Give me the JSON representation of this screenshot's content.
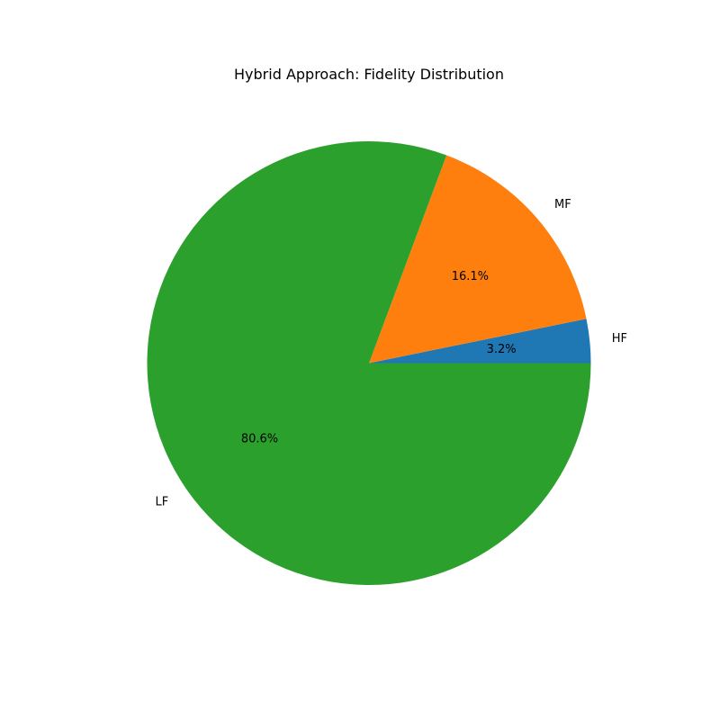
{
  "chart_data": {
    "type": "pie",
    "title": "Hybrid Approach: Fidelity Distribution",
    "start_angle": "0 (3 o'clock), counter-clockwise",
    "slices": [
      {
        "label": "HF",
        "value": 3.2,
        "pct_label": "3.2%",
        "color": "#1f77b4"
      },
      {
        "label": "MF",
        "value": 16.1,
        "pct_label": "16.1%",
        "color": "#ff7f0e"
      },
      {
        "label": "LF",
        "value": 80.6,
        "pct_label": "80.6%",
        "color": "#2ca02c"
      }
    ]
  }
}
